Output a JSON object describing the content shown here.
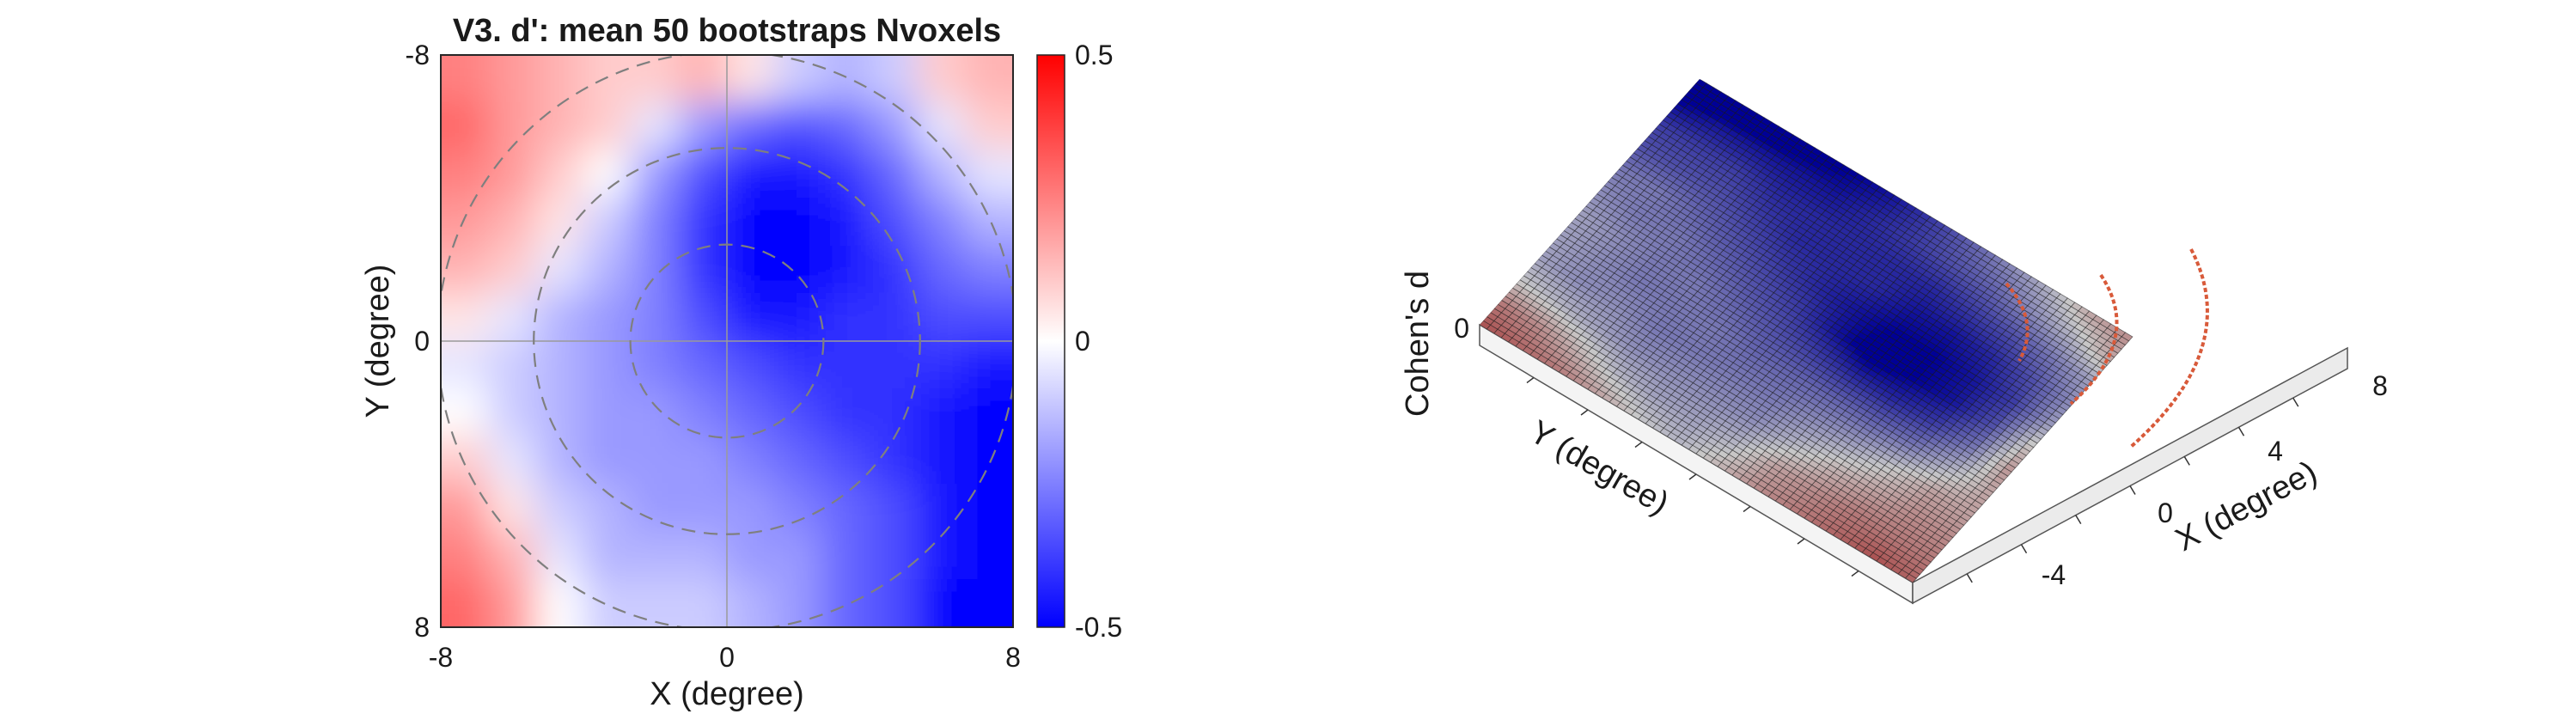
{
  "chart_data": [
    {
      "type": "heatmap",
      "title": "V3. d': mean 50 bootstraps Nvoxels",
      "xlabel": "X (degree)",
      "ylabel": "Y (degree)",
      "xlim": [
        -8,
        8
      ],
      "ylim": [
        -8,
        8
      ],
      "y_direction": "reversed",
      "xticks": [
        "-8",
        "0",
        "8"
      ],
      "yticks": [
        "-8",
        "0",
        "8"
      ],
      "grid": "crosshair at 0",
      "colormap": [
        "#0000ff",
        "#ffffff",
        "#ff0000"
      ],
      "clim": [
        -0.5,
        0.5
      ],
      "colorbar_ticks": [
        "0.5",
        "0",
        "-0.5"
      ],
      "eccentricity_rings": [
        2.7,
        5.4,
        8.1
      ],
      "grid_values": [
        [
          0.25,
          0.2,
          0.15,
          0.1,
          0.1,
          0.15,
          0.05,
          -0.1,
          -0.15,
          -0.1,
          0.1,
          0.15
        ],
        [
          0.3,
          0.2,
          0.15,
          0.1,
          -0.05,
          -0.2,
          -0.3,
          -0.35,
          -0.3,
          -0.2,
          -0.05,
          0.1
        ],
        [
          0.25,
          0.2,
          0.1,
          0.0,
          -0.2,
          -0.35,
          -0.45,
          -0.45,
          -0.4,
          -0.3,
          -0.15,
          -0.05
        ],
        [
          0.2,
          0.15,
          0.05,
          -0.1,
          -0.25,
          -0.4,
          -0.5,
          -0.5,
          -0.45,
          -0.35,
          -0.25,
          -0.15
        ],
        [
          0.15,
          0.1,
          -0.05,
          -0.15,
          -0.25,
          -0.4,
          -0.55,
          -0.5,
          -0.45,
          -0.4,
          -0.3,
          -0.25
        ],
        [
          0.05,
          -0.05,
          -0.15,
          -0.2,
          -0.25,
          -0.35,
          -0.45,
          -0.45,
          -0.4,
          -0.4,
          -0.35,
          -0.35
        ],
        [
          -0.05,
          -0.1,
          -0.15,
          -0.2,
          -0.25,
          -0.3,
          -0.35,
          -0.4,
          -0.4,
          -0.4,
          -0.4,
          -0.45
        ],
        [
          0.0,
          -0.1,
          -0.15,
          -0.2,
          -0.2,
          -0.25,
          -0.3,
          -0.35,
          -0.4,
          -0.4,
          -0.45,
          -0.5
        ],
        [
          0.1,
          -0.05,
          -0.15,
          -0.2,
          -0.2,
          -0.2,
          -0.25,
          -0.3,
          -0.35,
          -0.4,
          -0.45,
          -0.55
        ],
        [
          0.2,
          0.05,
          -0.1,
          -0.15,
          -0.2,
          -0.2,
          -0.2,
          -0.25,
          -0.3,
          -0.35,
          -0.45,
          -0.6
        ],
        [
          0.25,
          0.15,
          -0.05,
          -0.15,
          -0.15,
          -0.15,
          -0.2,
          -0.2,
          -0.3,
          -0.35,
          -0.45,
          -0.65
        ],
        [
          0.3,
          0.2,
          0.0,
          -0.1,
          -0.1,
          -0.1,
          -0.15,
          -0.2,
          -0.3,
          -0.35,
          -0.5,
          -0.65
        ]
      ]
    },
    {
      "type": "surface",
      "zlabel": "Cohen's d",
      "xlabel": "X (degree)",
      "ylabel": "Y (degree)",
      "xticks": [
        "-4",
        "0",
        "4",
        "8"
      ],
      "zticks": [
        "0"
      ],
      "colormap": [
        "#000096",
        "#c8c8c8",
        "#960000"
      ],
      "note": "same map rendered as a meshed 3D surface"
    }
  ]
}
